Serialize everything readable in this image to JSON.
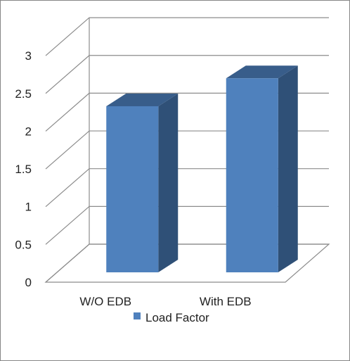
{
  "chart_data": {
    "type": "bar",
    "style": "3d-column",
    "categories": [
      "W/O EDB",
      "With EDB"
    ],
    "series": [
      {
        "name": "Load Factor",
        "values": [
          2.2,
          2.57
        ],
        "color": "#4f81bd"
      }
    ],
    "ylim": [
      0,
      3
    ],
    "yticks": [
      "0",
      "0.5",
      "1",
      "1.5",
      "2",
      "2.5",
      "3"
    ],
    "grid": true,
    "legend": "bottom",
    "colors": {
      "bar_front": "#4f81bd",
      "bar_side": "#2f5077",
      "bar_top": "#385d8a",
      "gridline": "#8c8c8c"
    }
  }
}
